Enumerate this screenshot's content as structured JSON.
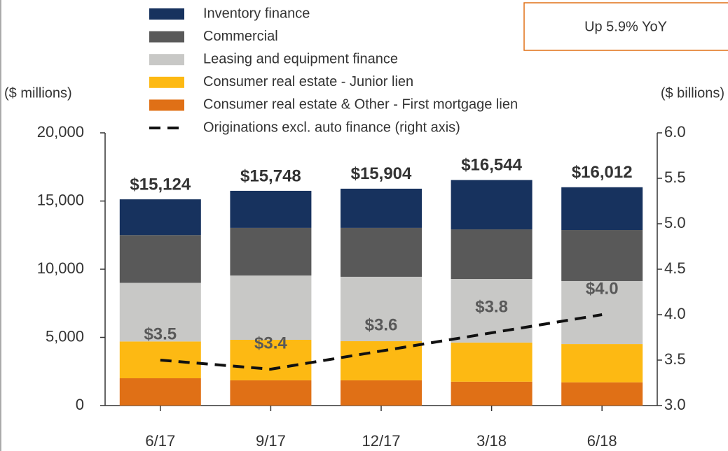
{
  "chart_data": {
    "type": "bar_line",
    "categories": [
      "6/17",
      "9/17",
      "12/17",
      "3/18",
      "6/18"
    ],
    "series": [
      {
        "name": "Inventory finance",
        "color": "#17325e",
        "values": [
          2624,
          2718,
          2874,
          3624,
          3142
        ]
      },
      {
        "name": "Commercial",
        "color": "#595959",
        "values": [
          3500,
          3490,
          3590,
          3640,
          3740
        ]
      },
      {
        "name": "Leasing and equipment finance",
        "color": "#c8c8c6",
        "values": [
          4300,
          4720,
          4720,
          4660,
          4620
        ]
      },
      {
        "name": "Consumer real estate - Junior lien",
        "color": "#fdb913",
        "values": [
          2700,
          2970,
          2870,
          2870,
          2810
        ]
      },
      {
        "name": "Consumer real estate & Other - First mortgage lien",
        "color": "#e07016",
        "values": [
          2000,
          1850,
          1850,
          1750,
          1700
        ]
      },
      {
        "name": "Originations excl. auto finance (right axis)",
        "color": "#111111",
        "axis": "y2",
        "dashed": true,
        "values": [
          3.5,
          3.4,
          3.6,
          3.8,
          4.0
        ],
        "value_labels": [
          "$3.5",
          "$3.4",
          "$3.6",
          "$3.8",
          "$4.0"
        ]
      }
    ],
    "totals": [
      15124,
      15748,
      15904,
      16544,
      16012
    ],
    "total_labels": [
      "$15,124",
      "$15,748",
      "$15,904",
      "$16,544",
      "$16,012"
    ],
    "ylabel": "($ millions)",
    "y2label": "($ billions)",
    "annotation": "Up 5.9% YoY",
    "ylim": [
      0,
      20000
    ],
    "yticks": [
      0,
      {
        "value": 5000,
        "label": "5,000"
      },
      {
        "value": 10000,
        "label": "10,000"
      },
      {
        "value": 15000,
        "label": "15,000"
      },
      {
        "value": 20000,
        "label": "20,000"
      }
    ],
    "y2lim": [
      3,
      6
    ],
    "y2ticks": [
      {
        "value": 3,
        "label": "3.0"
      },
      {
        "value": 3.5,
        "label": "3.5"
      },
      {
        "value": 4,
        "label": "4.0"
      },
      {
        "value": 4.5,
        "label": "4.5"
      },
      {
        "value": 5,
        "label": "5.0"
      },
      {
        "value": 5.5,
        "label": "5.5"
      },
      {
        "value": 6,
        "label": "6.0"
      }
    ],
    "legend": "top-left",
    "grid": false
  }
}
